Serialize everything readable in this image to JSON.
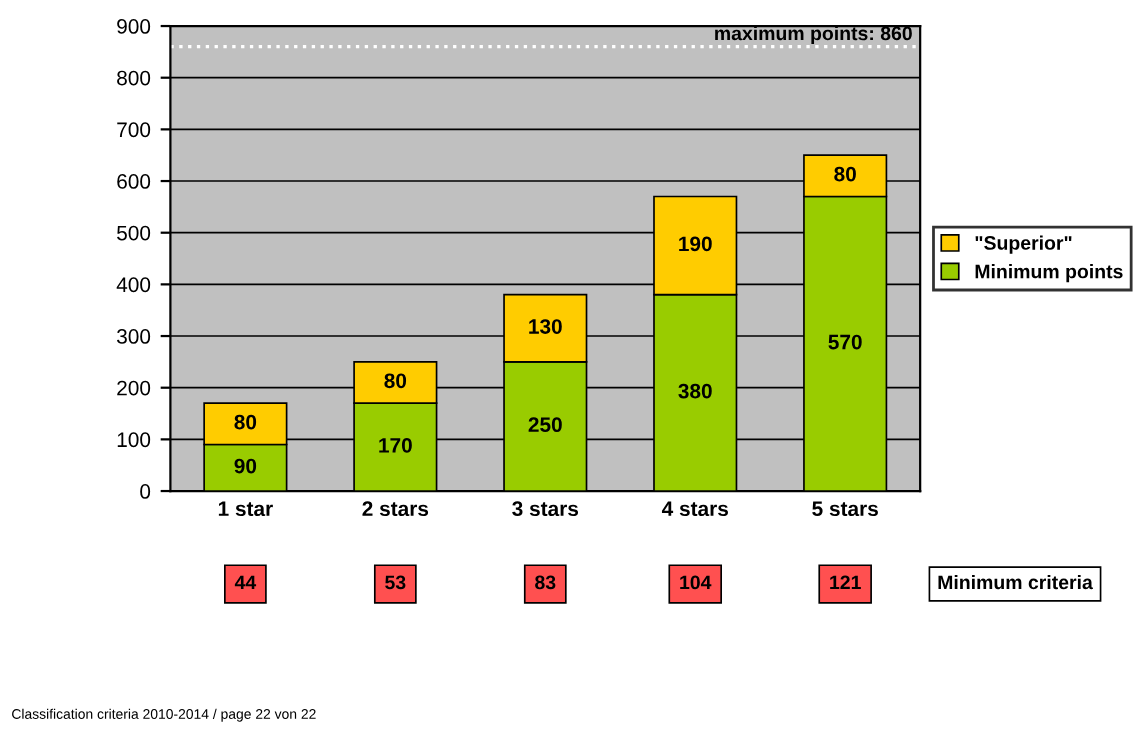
{
  "chart_data": {
    "type": "bar",
    "stacked": true,
    "categories": [
      "1 star",
      "2 stars",
      "3 stars",
      "4 stars",
      "5 stars"
    ],
    "series": [
      {
        "name": "Minimum points",
        "color": "#99cc00",
        "values": [
          90,
          170,
          250,
          380,
          570
        ]
      },
      {
        "name": "\"Superior\"",
        "color": "#ffcc00",
        "values": [
          80,
          80,
          130,
          190,
          80
        ]
      }
    ],
    "data_labels": true,
    "ylim": [
      0,
      900
    ],
    "yticks": [
      0,
      100,
      200,
      300,
      400,
      500,
      600,
      700,
      800,
      900
    ],
    "grid": "y",
    "legend": "right",
    "ref_lines": [
      {
        "axis": "y",
        "value": 860,
        "label": "maximum points: 860",
        "color": "#ffffff",
        "line_style": "dotted"
      }
    ],
    "annotations": [
      "44",
      "53",
      "83",
      "104",
      "121",
      "Minimum criteria",
      "Classification criteria 2010-2014 / page 22 von 22"
    ]
  }
}
